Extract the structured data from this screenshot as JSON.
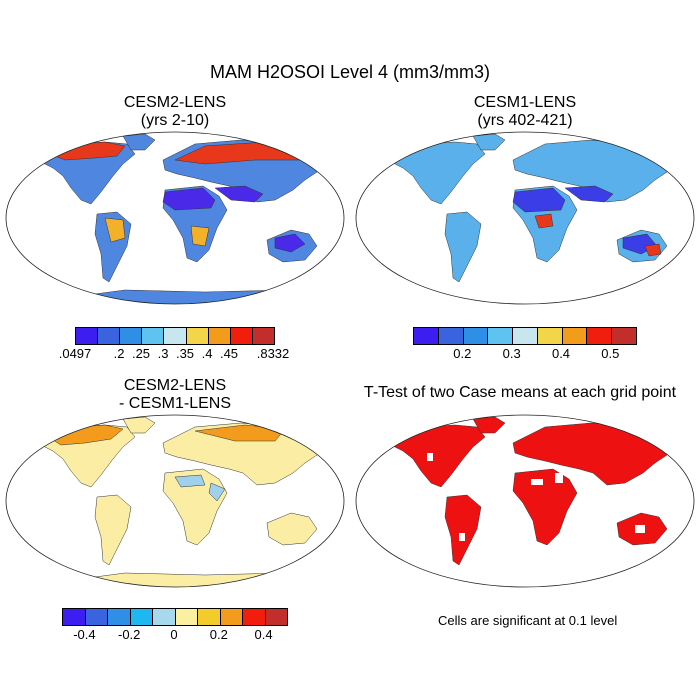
{
  "figure": {
    "title": "MAM H2OSOI Level 4 (mm3/mm3)"
  },
  "panels": {
    "p1": {
      "line1": "CESM2-LENS",
      "line2": "(yrs 2-10)"
    },
    "p2": {
      "line1": "CESM1-LENS",
      "line2": "(yrs 402-421)"
    },
    "p3": {
      "line1": "CESM2-LENS",
      "line2": "- CESM1-LENS"
    },
    "p4": {
      "line1": "T-Test of two Case means at each grid point",
      "note": "Cells are significant at 0.1 level"
    }
  },
  "colorbars": {
    "cb1": {
      "colors": [
        "#3d1ef0",
        "#3a63e0",
        "#2f8fe6",
        "#5ec3ee",
        "#c8e6ef",
        "#f3d54a",
        "#f39b1c",
        "#f11e0e",
        "#c22e2b"
      ],
      "ticks": [
        ".0497",
        ".2",
        ".25",
        ".3",
        ".35",
        ".4",
        ".45",
        ".8332"
      ]
    },
    "cb2": {
      "colors": [
        "#3d1ef0",
        "#3a63e0",
        "#2f8fe6",
        "#5ec3ee",
        "#c8e6ef",
        "#f3d54a",
        "#f39b1c",
        "#f11e0e",
        "#c22e2b"
      ],
      "ticks": [
        "0.2",
        "0.3",
        "0.4",
        "0.5"
      ]
    },
    "cb3": {
      "colors": [
        "#3d1ef0",
        "#3a63e0",
        "#2f8fe6",
        "#1fb7ef",
        "#a8d8ee",
        "#fbf0a0",
        "#f3cb2a",
        "#f39b1c",
        "#f11e0e",
        "#c22e2b"
      ],
      "ticks": [
        "-0.4",
        "-0.2",
        "0",
        "0.2",
        "0.4"
      ]
    }
  },
  "fills": {
    "land": "#4f86e0",
    "tropics": "#4a2ae8",
    "high_lat": "#e8381c",
    "mid_lat": "#f3b12a",
    "cesm1_land": "#5ab0ea",
    "cesm1_dry": "#3b3ee6",
    "diff_land": "#fbeea4",
    "diff_hot": "#f39b1c",
    "diff_cool": "#9fd0ec",
    "sig": "#ee1111"
  }
}
